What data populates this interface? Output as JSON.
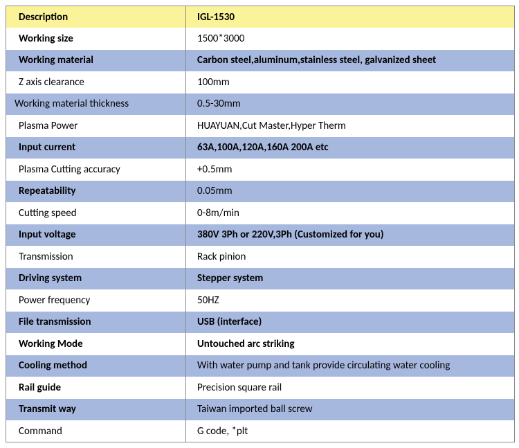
{
  "table": {
    "header": {
      "label": "Description",
      "value": "IGL-1530"
    },
    "rows": [
      {
        "label": "Working size",
        "value": "1500*3000",
        "band": "white",
        "label_class": "bold",
        "value_class": ""
      },
      {
        "label": "Working material",
        "value": "Carbon steel,aluminum,stainless steel, galvanized sheet",
        "band": "blue",
        "label_class": "bold",
        "value_class": "bold"
      },
      {
        "label": "Z axis clearance",
        "value": "100mm",
        "band": "white",
        "label_class": "",
        "value_class": ""
      },
      {
        "label": "Working material thickness",
        "value": "0.5-30mm",
        "band": "blue",
        "label_class": "pad-less",
        "value_class": ""
      },
      {
        "label": "Plasma Power",
        "value": "HUAYUAN,Cut Master,Hyper Therm",
        "band": "white",
        "label_class": "small",
        "value_class": ""
      },
      {
        "label": "Input current",
        "value": "63A,100A,120A,160A 200A etc",
        "band": "blue",
        "label_class": "bold",
        "value_class": "bold"
      },
      {
        "label": "Plasma Cutting accuracy",
        "value": "+0.5mm",
        "band": "white",
        "label_class": "",
        "value_class": ""
      },
      {
        "label": "Repeatability",
        "value": "0.05mm",
        "band": "blue",
        "label_class": "bold2",
        "value_class": ""
      },
      {
        "label": "Cutting speed",
        "value": "0-8m/min",
        "band": "white",
        "label_class": "small",
        "value_class": ""
      },
      {
        "label": "Input voltage",
        "value": "380V 3Ph or 220V,3Ph (Customized for you)",
        "band": "blue",
        "label_class": "bold",
        "value_class": "bold"
      },
      {
        "label": "Transmission",
        "value": "Rack pinion",
        "band": "white",
        "label_class": "",
        "value_class": ""
      },
      {
        "label": "Driving system",
        "value": "Stepper system",
        "band": "blue",
        "label_class": "bold",
        "value_class": "bold"
      },
      {
        "label": "Power frequency",
        "value": "50HZ",
        "band": "white",
        "label_class": "",
        "value_class": ""
      },
      {
        "label": "File transmission",
        "value": "USB (interface)",
        "band": "blue",
        "label_class": "bold",
        "value_class": "bold"
      },
      {
        "label": "Working Mode",
        "value": "Untouched arc striking",
        "band": "white",
        "label_class": "bold",
        "value_class": "bold"
      },
      {
        "label": "Cooling method",
        "value": "With water pump and tank provide circulating water cooling",
        "band": "blue",
        "label_class": "bold",
        "value_class": "small"
      },
      {
        "label": "Rail guide",
        "value": "Precision square rail",
        "band": "white",
        "label_class": "bold",
        "value_class": ""
      },
      {
        "label": "Transmit way",
        "value": "Taiwan imported ball screw",
        "band": "blue",
        "label_class": "bold",
        "value_class": "small"
      },
      {
        "label": "Command",
        "value": "G code, *plt",
        "band": "white",
        "label_class": "",
        "value_class": ""
      }
    ],
    "colors": {
      "band_blue": "#a7b8df",
      "band_white": "#ffffff",
      "header_bg": "#faf39a",
      "border": "#888888",
      "text": "#000000"
    }
  }
}
